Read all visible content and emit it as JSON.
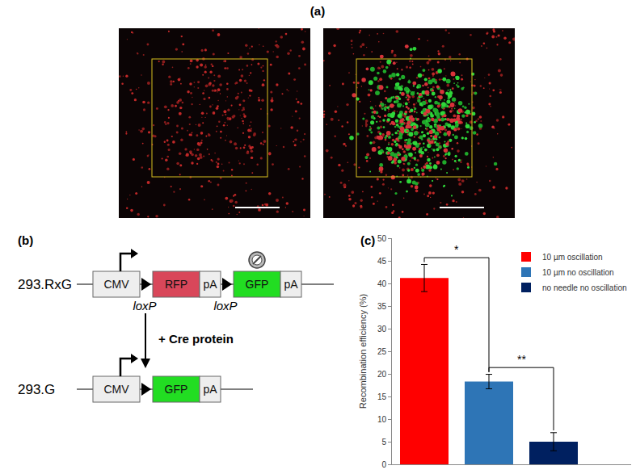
{
  "figure": {
    "panel_labels": [
      "(a)",
      "(b)",
      "(c)"
    ],
    "diagram": {
      "before": {
        "name": "293.RxG",
        "elements": [
          {
            "kind": "box",
            "label": "CMV",
            "color": "#eeeeee",
            "promoter": true
          },
          {
            "kind": "site",
            "label": "loxP"
          },
          {
            "kind": "box",
            "label": "RFP",
            "color": "#d9475a"
          },
          {
            "kind": "box",
            "label": "pA",
            "color": "#eeeeee"
          },
          {
            "kind": "site",
            "label": "loxP"
          },
          {
            "kind": "box",
            "label": "GFP",
            "color": "#22dd22",
            "stop": true
          },
          {
            "kind": "box",
            "label": "pA",
            "color": "#eeeeee"
          }
        ]
      },
      "arrow_label": "+ Cre protein",
      "after": {
        "name": "293.G",
        "elements": [
          {
            "kind": "box",
            "label": "CMV",
            "color": "#eeeeee",
            "promoter": true
          },
          {
            "kind": "site"
          },
          {
            "kind": "box",
            "label": "GFP",
            "color": "#22dd22"
          },
          {
            "kind": "box",
            "label": "pA",
            "color": "#eeeeee"
          }
        ]
      }
    }
  },
  "chart_data": {
    "type": "bar",
    "y_label": "Recombination efficiency (%)",
    "categories": [
      null,
      null,
      null
    ],
    "series": [
      {
        "name": "10 µm oscillation",
        "color": "#ff0000",
        "values": [
          41.2,
          null,
          null
        ],
        "errors": [
          3.0,
          null,
          null
        ]
      },
      {
        "name": "10 µm no oscillation",
        "color": "#2e75b6",
        "values": [
          null,
          18.3,
          null
        ],
        "errors": [
          null,
          1.6,
          null
        ]
      },
      {
        "name": "no needle no oscillation",
        "color": "#002060",
        "values": [
          null,
          null,
          5.0
        ],
        "errors": [
          null,
          null,
          2.0
        ]
      }
    ],
    "significance": [
      {
        "from": 0,
        "to": 1,
        "label": "*"
      },
      {
        "from": 1,
        "to": 2,
        "label": "**"
      }
    ],
    "ylim": [
      0,
      50
    ],
    "yticks": [
      0,
      5,
      10,
      15,
      20,
      25,
      30,
      35,
      40,
      45,
      50
    ],
    "grid": false,
    "legend": "top-right",
    "tick_labels": "y"
  }
}
